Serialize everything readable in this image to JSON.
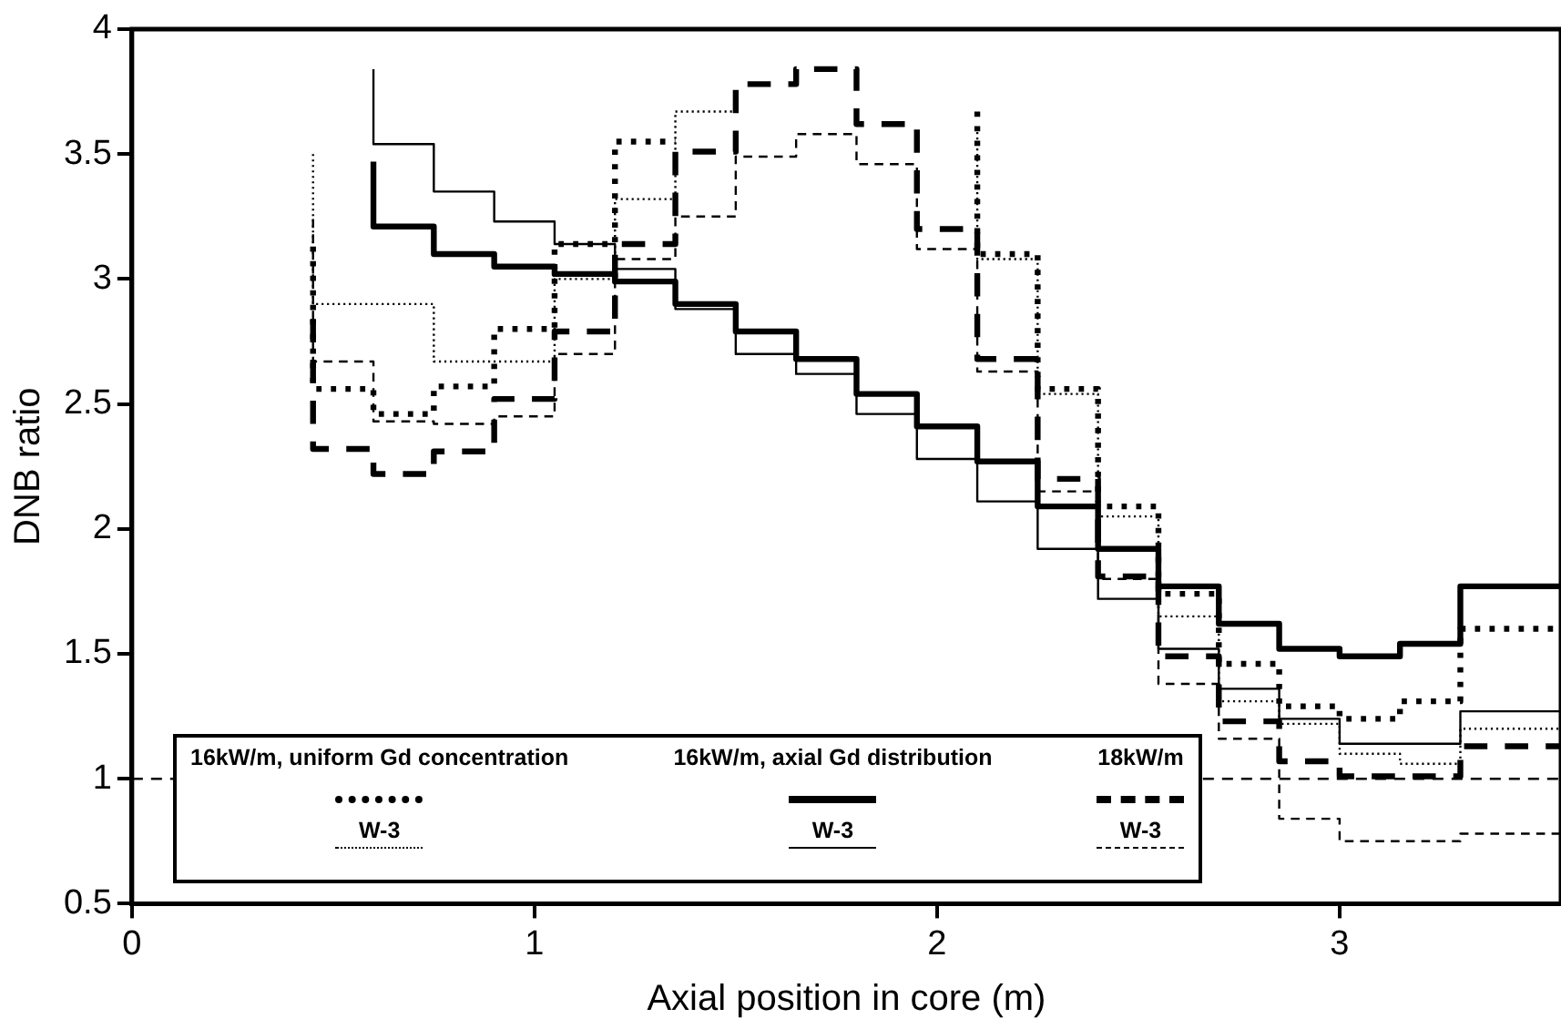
{
  "chart_data": {
    "type": "step",
    "xlabel": "Axial position in core (m)",
    "ylabel": "DNB ratio",
    "x": [
      0.45,
      0.6,
      0.75,
      0.9,
      1.05,
      1.2,
      1.35,
      1.5,
      1.65,
      1.8,
      1.95,
      2.1,
      2.25,
      2.4,
      2.55,
      2.7,
      2.85,
      3.0,
      3.15,
      3.3,
      3.45,
      3.55
    ],
    "series": [
      {
        "color": "#000000",
        "line_style": "dotted",
        "values": [
          3.13,
          2.56,
          2.46,
          2.57,
          2.8,
          3.14,
          3.55,
          null,
          null,
          null,
          null,
          3.67,
          3.1,
          2.56,
          2.09,
          1.74,
          1.46,
          1.29,
          1.24,
          1.31,
          1.6,
          1.6
        ]
      },
      {
        "name": "W-3",
        "color": "#000000",
        "line_style": "dotted",
        "values": [
          3.5,
          2.9,
          2.9,
          2.67,
          2.67,
          3.0,
          3.32,
          3.67,
          null,
          null,
          null,
          3.61,
          3.08,
          2.54,
          2.05,
          1.65,
          1.31,
          1.22,
          1.1,
          1.06,
          1.2,
          1.2
        ]
      },
      {
        "color": "#000000",
        "line_style": "solid",
        "values": [
          null,
          3.47,
          3.21,
          3.1,
          3.05,
          3.02,
          2.99,
          2.9,
          2.79,
          2.68,
          2.54,
          2.41,
          2.27,
          2.09,
          1.92,
          1.77,
          1.62,
          1.52,
          1.49,
          1.54,
          1.77,
          1.77
        ]
      },
      {
        "name": "W-3",
        "color": "#000000",
        "line_style": "solid",
        "values": [
          null,
          3.84,
          3.54,
          3.35,
          3.23,
          3.14,
          3.04,
          2.88,
          2.7,
          2.62,
          2.46,
          2.28,
          2.11,
          1.92,
          1.72,
          1.52,
          1.36,
          1.24,
          1.14,
          1.14,
          1.27,
          1.27
        ]
      },
      {
        "color": "#000000",
        "line_style": "dashed",
        "values": [
          2.84,
          2.32,
          2.22,
          2.31,
          2.52,
          2.79,
          3.14,
          3.51,
          3.78,
          3.84,
          3.62,
          3.2,
          2.68,
          2.2,
          1.81,
          1.49,
          1.23,
          1.07,
          1.01,
          1.01,
          1.13,
          1.13
        ]
      },
      {
        "name": "W-3",
        "color": "#000000",
        "line_style": "dashed",
        "values": [
          3.24,
          2.67,
          2.43,
          2.42,
          2.45,
          2.7,
          3.08,
          3.25,
          3.49,
          3.58,
          3.46,
          3.12,
          2.63,
          2.15,
          1.8,
          1.38,
          1.16,
          0.84,
          0.75,
          0.75,
          0.78,
          0.78
        ]
      }
    ],
    "annotations": [
      "16kW/m, uniform Gd concentration",
      "16kW/m, axial Gd distribution",
      "18kW/m"
    ],
    "xlim": [
      0,
      3.55
    ],
    "xticks": [
      0,
      1,
      2,
      3
    ],
    "ylim": [
      0.5,
      4
    ],
    "yticks": [
      0.5,
      1,
      1.5,
      2,
      2.5,
      3,
      3.5,
      4
    ],
    "ref_lines": [
      {
        "axis": "y",
        "value": 1,
        "line_style": "dashed"
      }
    ],
    "legend": "bottom left",
    "marker": "none"
  }
}
